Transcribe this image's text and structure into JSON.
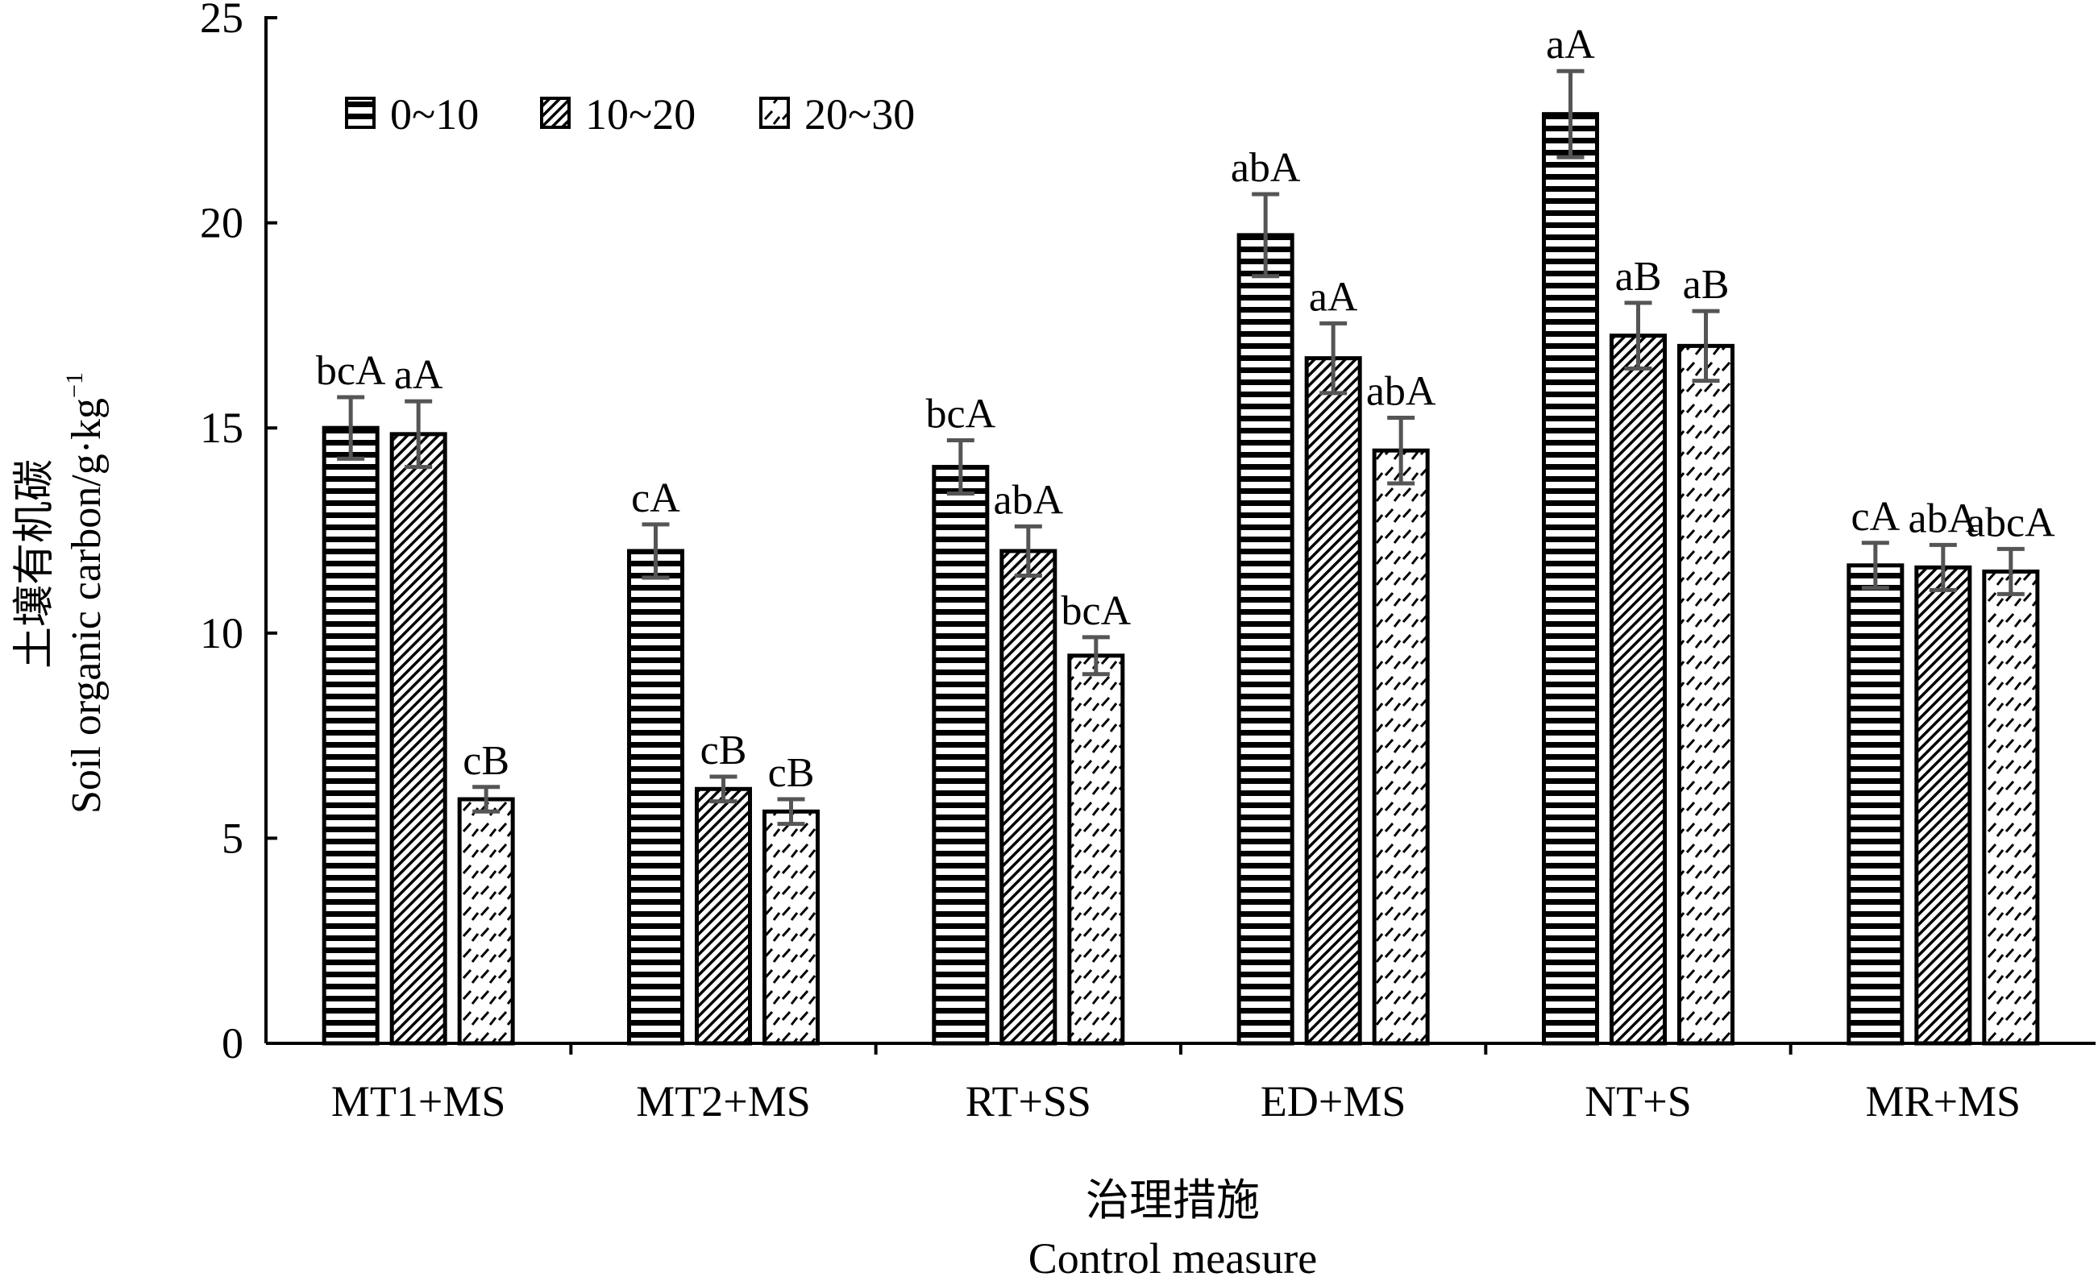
{
  "chart_data": {
    "type": "bar",
    "categories": [
      "MT1+MS",
      "MT2+MS",
      "RT+SS",
      "ED+MS",
      "NT+S",
      "MR+MS"
    ],
    "series": [
      {
        "name": "0~10",
        "pattern": "horizontal-stripes",
        "values": [
          15.0,
          12.0,
          14.05,
          19.7,
          22.65,
          11.65
        ],
        "errors": [
          0.75,
          0.65,
          0.65,
          1.0,
          1.05,
          0.55
        ],
        "labels": [
          "bcA",
          "cA",
          "bcA",
          "abA",
          "aA",
          "cA"
        ]
      },
      {
        "name": "10~20",
        "pattern": "diagonal-hatch",
        "values": [
          14.85,
          6.2,
          12.0,
          16.7,
          17.25,
          11.6
        ],
        "errors": [
          0.8,
          0.3,
          0.6,
          0.85,
          0.8,
          0.55
        ],
        "labels": [
          "aA",
          "cB",
          "abA",
          "aA",
          "aB",
          "abA"
        ]
      },
      {
        "name": "20~30",
        "pattern": "dashed-diagonal",
        "values": [
          5.95,
          5.65,
          9.45,
          14.45,
          17.0,
          11.5
        ],
        "errors": [
          0.3,
          0.3,
          0.45,
          0.8,
          0.85,
          0.55
        ],
        "labels": [
          "cB",
          "cB",
          "bcA",
          "abA",
          "aB",
          "abcA"
        ]
      }
    ],
    "ylim": [
      0,
      25
    ],
    "yticks": [
      0,
      5,
      10,
      15,
      20,
      25
    ],
    "ylabel_cn": "土壤有机碳",
    "ylabel_en": "Soil organic carbon/g·kg",
    "ylabel_sup": "−1",
    "xlabel_cn": "治理措施",
    "xlabel_en": "Control measure",
    "legend_position": "top-left",
    "grid": false
  },
  "colors": {
    "bar_fill": "#ffffff",
    "bar_stroke": "#000000",
    "error_bar": "#555555",
    "axis": "#000000"
  }
}
